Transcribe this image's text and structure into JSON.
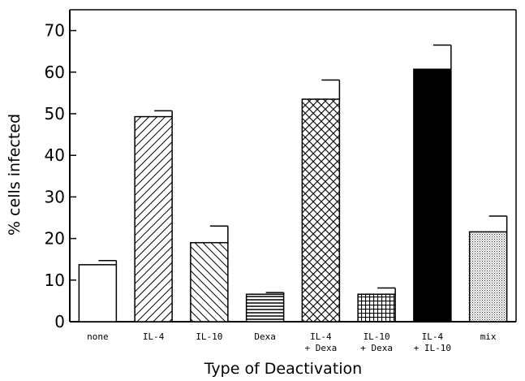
{
  "chart_data": {
    "type": "bar",
    "xlabel": "Type of Deactivation",
    "ylabel": "% cells infected",
    "ylim": [
      0,
      75
    ],
    "yticks": [
      0,
      10,
      20,
      30,
      40,
      50,
      60,
      70
    ],
    "grid": false,
    "categories": [
      {
        "line1": "none",
        "line2": "",
        "value": 13.7,
        "error": 1.0,
        "fill": "white"
      },
      {
        "line1": "IL-4",
        "line2": "",
        "value": 49.3,
        "error": 1.4,
        "fill": "diag-right"
      },
      {
        "line1": "IL-10",
        "line2": "",
        "value": 19.0,
        "error": 4.0,
        "fill": "diag-left"
      },
      {
        "line1": "Dexa",
        "line2": "",
        "value": 6.6,
        "error": 0.4,
        "fill": "horizontal"
      },
      {
        "line1": "IL-4",
        "line2": "+ Dexa",
        "value": 53.5,
        "error": 4.6,
        "fill": "crosshatch"
      },
      {
        "line1": "IL-10",
        "line2": "+ Dexa",
        "value": 6.6,
        "error": 1.5,
        "fill": "grid"
      },
      {
        "line1": "IL-4",
        "line2": "+ IL-10",
        "value": 60.7,
        "error": 5.8,
        "fill": "black"
      },
      {
        "line1": "mix",
        "line2": "",
        "value": 21.6,
        "error": 3.8,
        "fill": "dots"
      }
    ]
  }
}
